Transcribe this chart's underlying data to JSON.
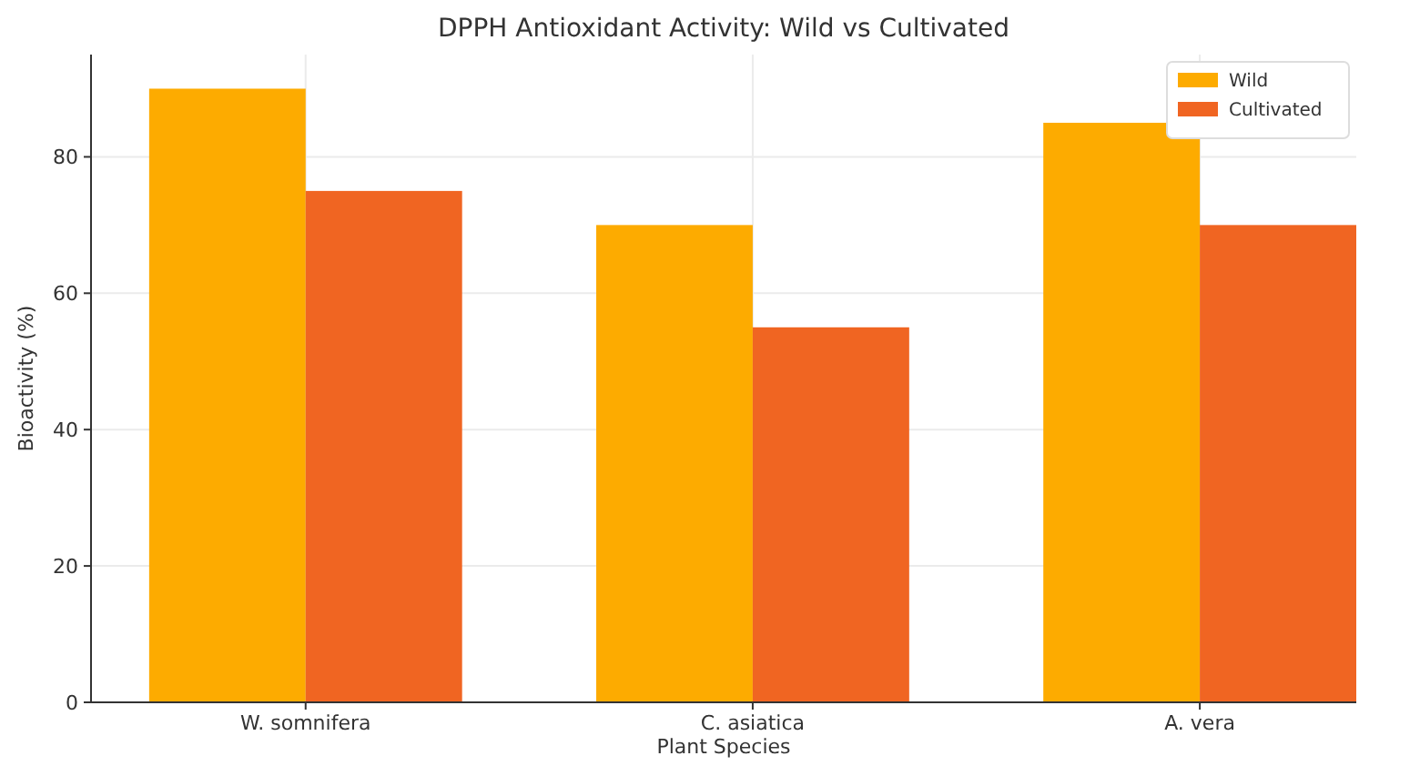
{
  "chart_data": {
    "type": "bar",
    "title": "DPPH Antioxidant Activity: Wild vs Cultivated",
    "xlabel": "Plant Species",
    "ylabel": "Bioactivity (%)",
    "categories": [
      "W. somnifera",
      "C. asiatica",
      "A. vera"
    ],
    "series": [
      {
        "name": "Wild",
        "color": "#fdab00",
        "values": [
          90,
          70,
          85
        ]
      },
      {
        "name": "Cultivated",
        "color": "#f06522",
        "values": [
          75,
          55,
          70
        ]
      }
    ],
    "ylim": [
      0,
      95
    ],
    "yticks": [
      0,
      20,
      40,
      60,
      80
    ],
    "grid": true,
    "legend": "top right"
  }
}
